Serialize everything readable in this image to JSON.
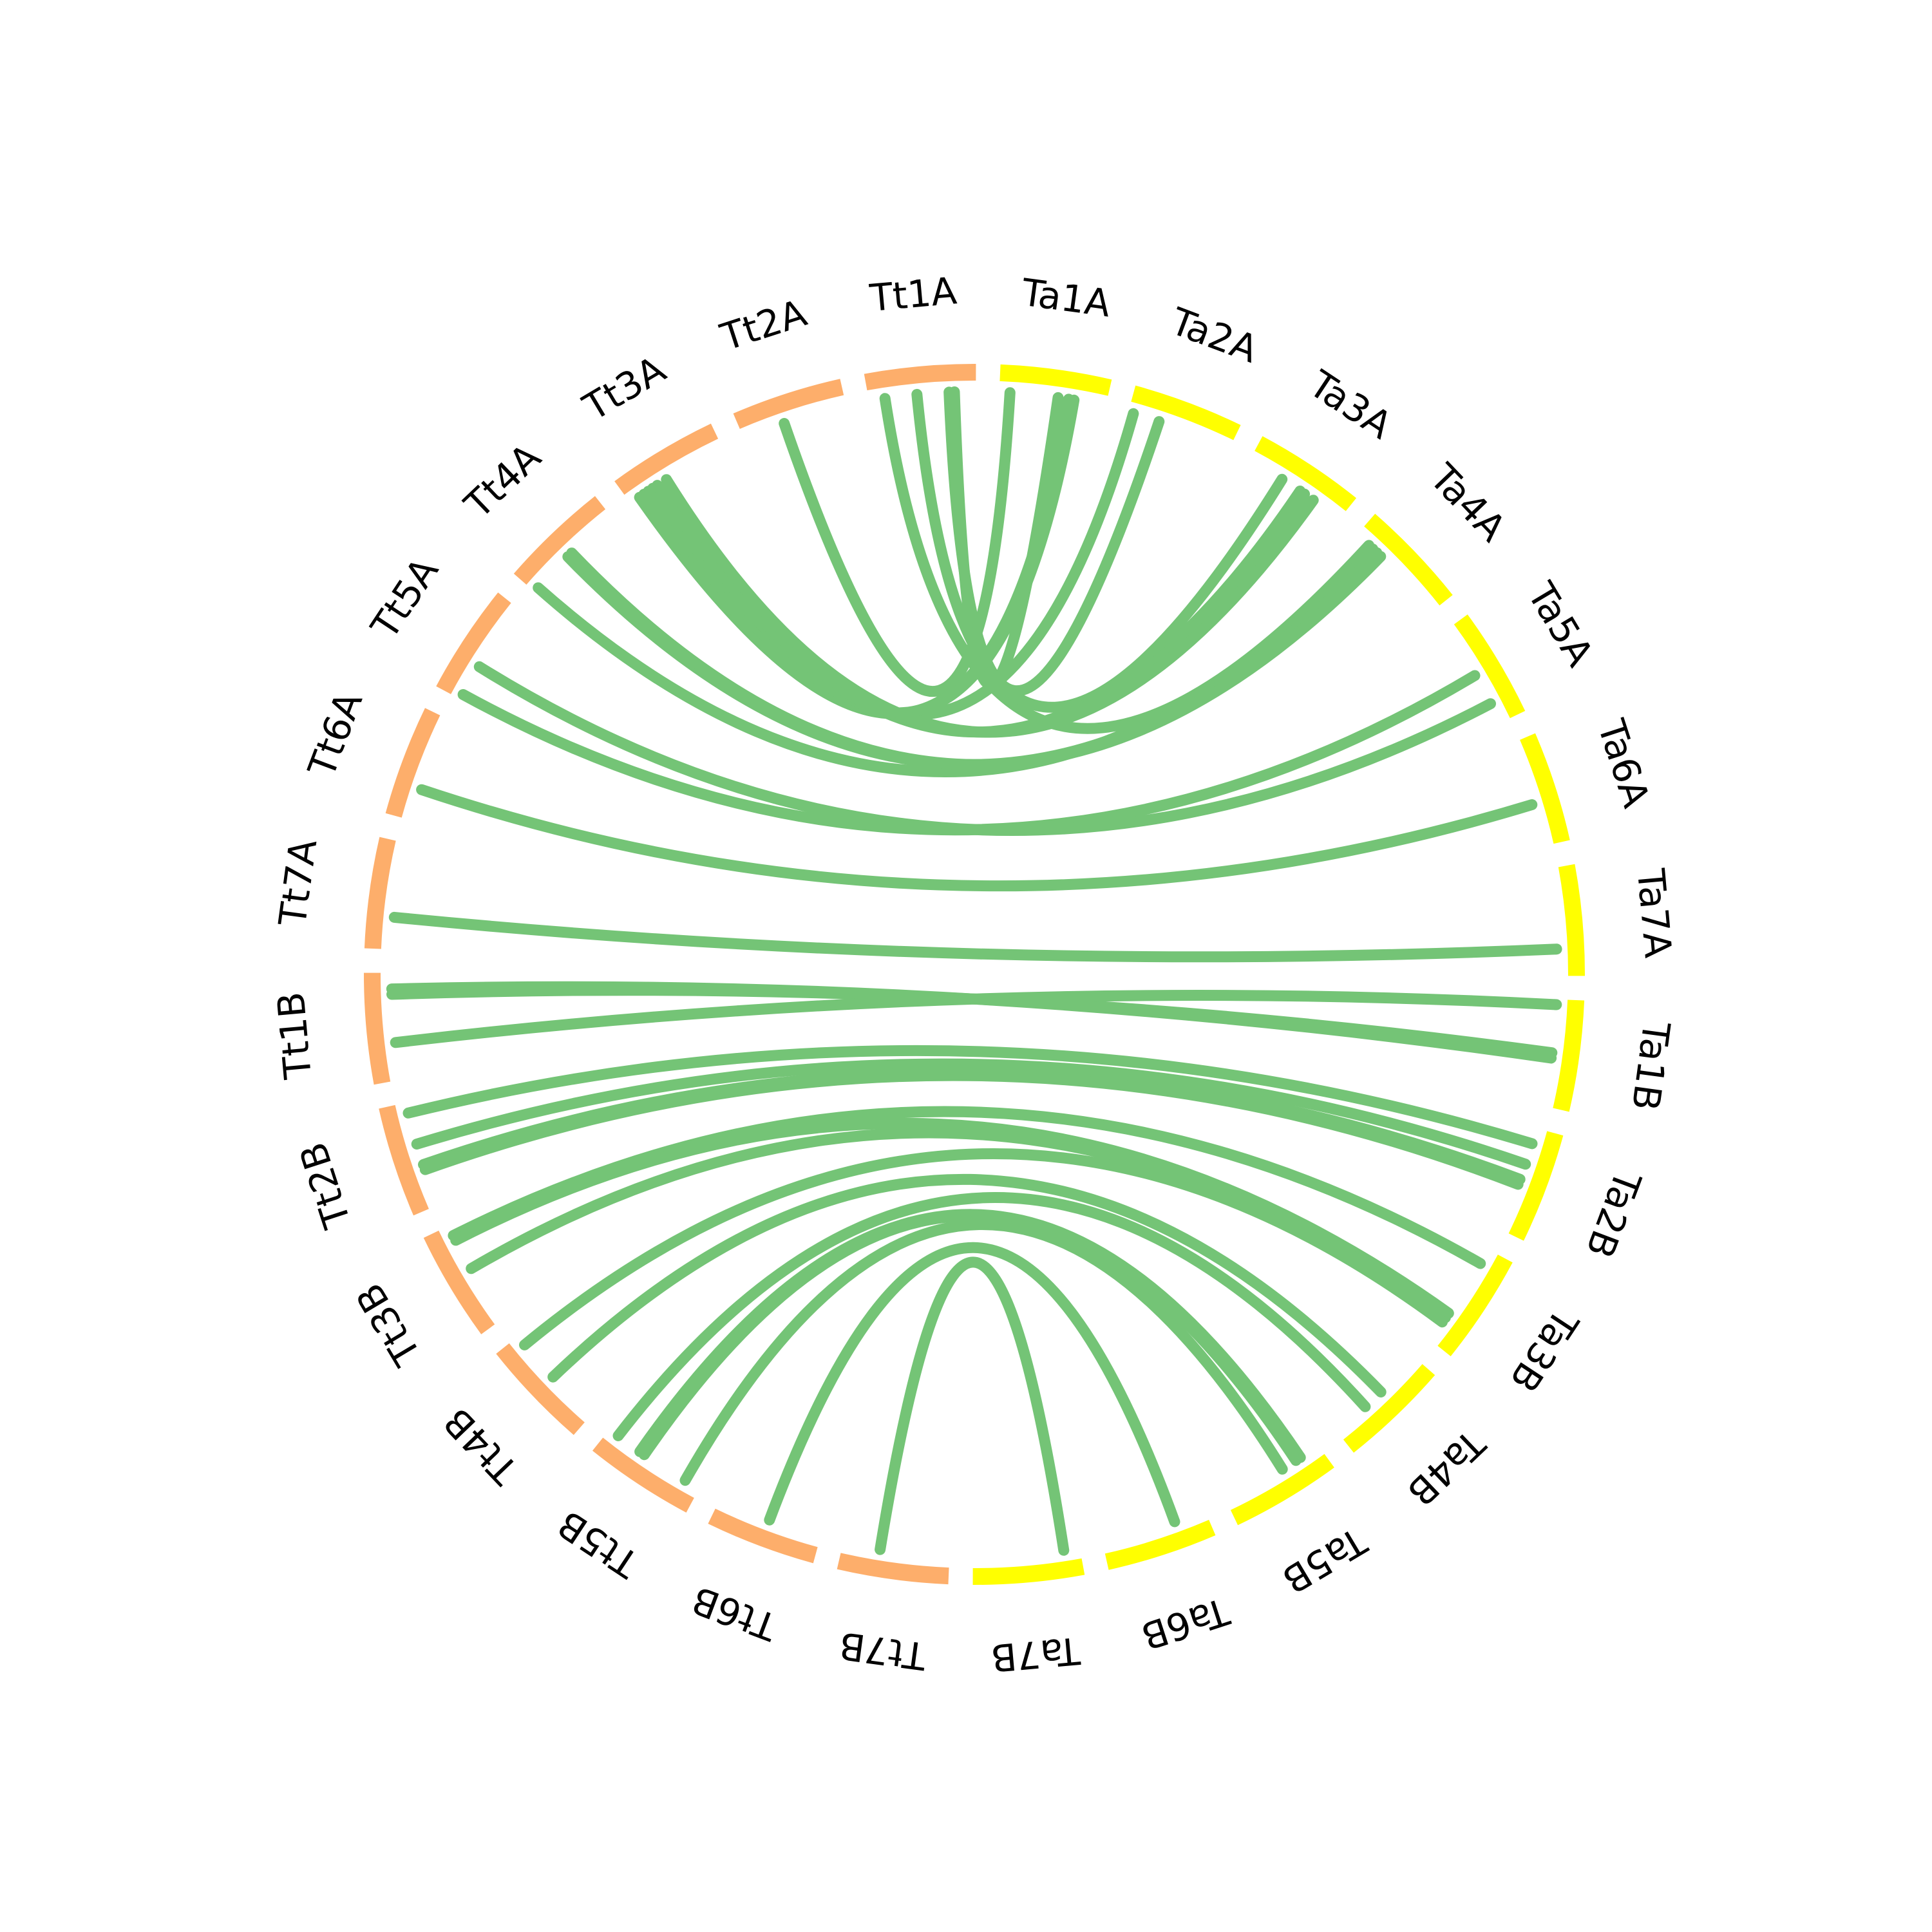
{
  "colors": {
    "Tt": "#fdae6b",
    "Ta": "#ffff00",
    "link": "#74c476",
    "label": "#000000"
  },
  "segments": [
    {
      "id": "Ta1A",
      "label": "Ta1A",
      "group": "Ta"
    },
    {
      "id": "Ta2A",
      "label": "Ta2A",
      "group": "Ta"
    },
    {
      "id": "Ta3A",
      "label": "Ta3A",
      "group": "Ta"
    },
    {
      "id": "Ta4A",
      "label": "Ta4A",
      "group": "Ta"
    },
    {
      "id": "Ta5A",
      "label": "Ta5A",
      "group": "Ta"
    },
    {
      "id": "Ta6A",
      "label": "Ta6A",
      "group": "Ta"
    },
    {
      "id": "Ta7A",
      "label": "Ta7A",
      "group": "Ta"
    },
    {
      "id": "Ta1B",
      "label": "Ta1B",
      "group": "Ta"
    },
    {
      "id": "Ta2B",
      "label": "Ta2B",
      "group": "Ta"
    },
    {
      "id": "Ta3B",
      "label": "Ta3B",
      "group": "Ta"
    },
    {
      "id": "Ta4B",
      "label": "Ta4B",
      "group": "Ta"
    },
    {
      "id": "Ta5B",
      "label": "Ta5B",
      "group": "Ta"
    },
    {
      "id": "Ta6B",
      "label": "Ta6B",
      "group": "Ta"
    },
    {
      "id": "Ta7B",
      "label": "Ta7B",
      "group": "Ta"
    },
    {
      "id": "Tt7B",
      "label": "Tt7B",
      "group": "Tt"
    },
    {
      "id": "Tt6B",
      "label": "Tt6B",
      "group": "Tt"
    },
    {
      "id": "Tt5B",
      "label": "Tt5B",
      "group": "Tt"
    },
    {
      "id": "Tt4B",
      "label": "Tt4B",
      "group": "Tt"
    },
    {
      "id": "Tt3B",
      "label": "Tt3B",
      "group": "Tt"
    },
    {
      "id": "Tt2B",
      "label": "Tt2B",
      "group": "Tt"
    },
    {
      "id": "Tt1B",
      "label": "Tt1B",
      "group": "Tt"
    },
    {
      "id": "Tt7A",
      "label": "Tt7A",
      "group": "Tt"
    },
    {
      "id": "Tt6A",
      "label": "Tt6A",
      "group": "Tt"
    },
    {
      "id": "Tt5A",
      "label": "Tt5A",
      "group": "Tt"
    },
    {
      "id": "Tt4A",
      "label": "Tt4A",
      "group": "Tt"
    },
    {
      "id": "Tt3A",
      "label": "Tt3A",
      "group": "Tt"
    },
    {
      "id": "Tt2A",
      "label": "Tt2A",
      "group": "Tt"
    },
    {
      "id": "Tt1A",
      "label": "Tt1A",
      "group": "Tt"
    }
  ],
  "links": [
    [
      "Tt1A",
      0.15,
      "Ta4A",
      0.15
    ],
    [
      "Tt1A",
      0.45,
      "Ta3A",
      0.35
    ],
    [
      "Tt1A",
      0.75,
      "Ta2A",
      0.3
    ],
    [
      "Tt1A",
      0.8,
      "Ta1A",
      0.55
    ],
    [
      "Ta1A",
      0.1,
      "Tt2A",
      0.4
    ],
    [
      "Ta1A",
      0.65,
      "Tt3A",
      0.1
    ],
    [
      "Ta1A",
      0.7,
      "Tt3A",
      0.15
    ],
    [
      "Ta2A",
      0.05,
      "Tt3A",
      0.2
    ],
    [
      "Tt3A",
      0.25,
      "Ta3A",
      0.55
    ],
    [
      "Tt3A",
      0.3,
      "Ta3A",
      0.6
    ],
    [
      "Tt3A",
      0.4,
      "Ta3A",
      0.7
    ],
    [
      "Tt4A",
      0.05,
      "Ta4A",
      0.2
    ],
    [
      "Tt4A",
      0.45,
      "Ta4A",
      0.25
    ],
    [
      "Tt4A",
      0.5,
      "Ta4A",
      0.3
    ],
    [
      "Tt5A",
      0.05,
      "Ta5A",
      0.5
    ],
    [
      "Tt5A",
      0.35,
      "Ta5A",
      0.8
    ],
    [
      "Tt6A",
      0.3,
      "Ta6A",
      0.6
    ],
    [
      "Tt7A",
      0.3,
      "Ta7A",
      0.75
    ],
    [
      "Tt1B",
      0.8,
      "Ta1B",
      0.5
    ],
    [
      "Tt1B",
      0.85,
      "Ta1B",
      0.55
    ],
    [
      "Tt1B",
      0.35,
      "Ta1B",
      0.05
    ],
    [
      "Tt2B",
      0.9,
      "Ta2B",
      0.15
    ],
    [
      "Tt2B",
      0.6,
      "Ta2B",
      0.35
    ],
    [
      "Tt2B",
      0.4,
      "Ta2B",
      0.5
    ],
    [
      "Tt2B",
      0.35,
      "Ta2B",
      0.55
    ],
    [
      "Tt3B",
      0.9,
      "Ta3B",
      0.15
    ],
    [
      "Tt3B",
      0.85,
      "Ta3B",
      0.7
    ],
    [
      "Tt3B",
      0.55,
      "Ta3B",
      0.75
    ],
    [
      "Tt4B",
      0.9,
      "Ta3B",
      0.8
    ],
    [
      "Tt4B",
      0.5,
      "Ta4B",
      0.45
    ],
    [
      "Tt5B",
      0.9,
      "Ta4B",
      0.65
    ],
    [
      "Tt5B",
      0.65,
      "Ta5B",
      0.2
    ],
    [
      "Tt5B",
      0.6,
      "Ta5B",
      0.25
    ],
    [
      "Tt5B",
      0.15,
      "Ta5B",
      0.4
    ],
    [
      "Tt6B",
      0.5,
      "Ta6B",
      0.3
    ],
    [
      "Tt7B",
      0.65,
      "Ta7B",
      0.15
    ]
  ]
}
